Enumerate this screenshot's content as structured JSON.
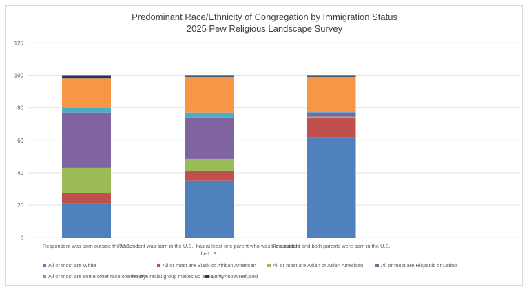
{
  "chart_data": {
    "type": "stacked-bar",
    "title": "Predominant Race/Ethnicity of Congregation by Immigration Status",
    "subtitle": "2025 Pew Religious Landscape Survey",
    "xlabel": "",
    "ylabel": "",
    "ylim": [
      0,
      120
    ],
    "yticks": [
      0,
      20,
      40,
      60,
      80,
      100,
      120
    ],
    "grid": true,
    "legend_position": "bottom",
    "categories": [
      "Respondent was born outside the U.S.",
      "Respondent was born in the U.S., has at least one parent who was born outside the U.S.",
      "Respondent and both parents were born in the U.S."
    ],
    "series": [
      {
        "name": "All or most are White",
        "color": "#4f81bd",
        "values": [
          21,
          35,
          62
        ]
      },
      {
        "name": "All or most are Black or African American",
        "color": "#c0504d",
        "values": [
          6.5,
          6,
          11.5
        ]
      },
      {
        "name": "All or most are Asian or Asian American",
        "color": "#9bbb59",
        "values": [
          15.5,
          7.5,
          1
        ]
      },
      {
        "name": "All or most are Hispanic or Latino",
        "color": "#8064a2",
        "values": [
          34,
          25.5,
          2.5
        ]
      },
      {
        "name": "All or most are some other race or ethnidty",
        "color": "#4bacc6",
        "values": [
          3,
          3,
          0.5
        ]
      },
      {
        "name": "No one racial group makes up a majority",
        "color": "#f79646",
        "values": [
          18,
          22,
          21.5
        ]
      },
      {
        "name": "Don't Know/Refused",
        "color": "#1f3864",
        "values": [
          2,
          1,
          1
        ]
      }
    ]
  }
}
